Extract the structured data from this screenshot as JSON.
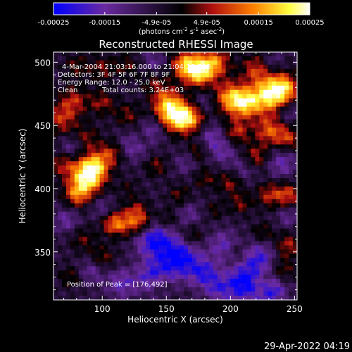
{
  "chart_data": {
    "type": "heatmap",
    "title": "Reconstructed RHESSI Image",
    "xlabel": "Heliocentric X (arcsec)",
    "ylabel": "Heliocentric Y (arcsec)",
    "xlim": [
      62,
      252
    ],
    "ylim": [
      312,
      508
    ],
    "xticks": [
      "100",
      "150",
      "200",
      "250"
    ],
    "yticks": [
      "350",
      "400",
      "450",
      "500"
    ],
    "xtick_values": [
      100,
      150,
      200,
      250
    ],
    "ytick_values": [
      350,
      400,
      450,
      500
    ],
    "colorbar": {
      "range": [
        -0.00025,
        0.00025
      ],
      "tick_values": [
        -0.00025,
        -0.00015,
        -4.9e-05,
        4.9e-05,
        0.00015,
        0.00025
      ],
      "tick_labels": [
        "-0.00025",
        "-0.00015",
        "-4.9e-05",
        "4.9e-05",
        "0.00015",
        "0.00025"
      ],
      "units": "(photons cm",
      "units_exp1": "-2",
      "units_mid": " s",
      "units_exp2": "-1",
      "units_end": " asec",
      "units_exp3": "-2",
      "units_close": ")",
      "colors": [
        "#0000ff",
        "#6a2aa0",
        "#000000",
        "#b01010",
        "#ff8000",
        "#ffff40",
        "#ffffff"
      ]
    },
    "annotations": {
      "time": "4-Mar-2004 21:03:16.000 to 21:04:16.000",
      "detectors": "Detectors: 3F 4F 5F 6F 7F 8F 9F",
      "energy": "Energy Range: 12.0 - 25.0 keV",
      "method": "Clean",
      "counts": "Total counts: 3.24E+03",
      "peak": "Position of Peak = [176,492]"
    },
    "blobs": [
      {
        "x": 88,
        "y": 408,
        "v": 1.0,
        "s": 9
      },
      {
        "x": 94,
        "y": 418,
        "v": 0.75,
        "s": 8
      },
      {
        "x": 80,
        "y": 395,
        "v": 0.6,
        "s": 7
      },
      {
        "x": 107,
        "y": 428,
        "v": 0.45,
        "s": 7
      },
      {
        "x": 120,
        "y": 373,
        "v": 0.55,
        "s": 8
      },
      {
        "x": 108,
        "y": 372,
        "v": 0.55,
        "s": 6
      },
      {
        "x": 132,
        "y": 372,
        "v": 0.4,
        "s": 6
      },
      {
        "x": 128,
        "y": 383,
        "v": 0.35,
        "s": 6
      },
      {
        "x": 70,
        "y": 420,
        "v": 0.45,
        "s": 8
      },
      {
        "x": 68,
        "y": 455,
        "v": 0.5,
        "s": 9
      },
      {
        "x": 78,
        "y": 470,
        "v": 0.45,
        "s": 8
      },
      {
        "x": 100,
        "y": 468,
        "v": 0.4,
        "s": 7
      },
      {
        "x": 88,
        "y": 440,
        "v": 0.35,
        "s": 7
      },
      {
        "x": 120,
        "y": 458,
        "v": 0.35,
        "s": 7
      },
      {
        "x": 130,
        "y": 440,
        "v": 0.3,
        "s": 6
      },
      {
        "x": 155,
        "y": 458,
        "v": 0.95,
        "s": 9
      },
      {
        "x": 168,
        "y": 455,
        "v": 0.8,
        "s": 8
      },
      {
        "x": 150,
        "y": 470,
        "v": 0.55,
        "s": 8
      },
      {
        "x": 176,
        "y": 492,
        "v": 0.9,
        "s": 8
      },
      {
        "x": 165,
        "y": 498,
        "v": 0.8,
        "s": 8
      },
      {
        "x": 188,
        "y": 500,
        "v": 0.7,
        "s": 8
      },
      {
        "x": 200,
        "y": 472,
        "v": 0.8,
        "s": 9
      },
      {
        "x": 212,
        "y": 467,
        "v": 0.75,
        "s": 8
      },
      {
        "x": 230,
        "y": 474,
        "v": 1.0,
        "s": 10
      },
      {
        "x": 242,
        "y": 480,
        "v": 0.75,
        "s": 8
      },
      {
        "x": 220,
        "y": 495,
        "v": 0.5,
        "s": 8
      },
      {
        "x": 205,
        "y": 445,
        "v": 0.5,
        "s": 7
      },
      {
        "x": 230,
        "y": 446,
        "v": 0.6,
        "s": 8
      },
      {
        "x": 245,
        "y": 440,
        "v": 0.5,
        "s": 7
      },
      {
        "x": 220,
        "y": 425,
        "v": 0.45,
        "s": 7
      },
      {
        "x": 175,
        "y": 430,
        "v": 0.35,
        "s": 6
      },
      {
        "x": 142,
        "y": 418,
        "v": 0.35,
        "s": 6
      },
      {
        "x": 200,
        "y": 405,
        "v": 0.4,
        "s": 7
      },
      {
        "x": 180,
        "y": 408,
        "v": 0.3,
        "s": 6
      },
      {
        "x": 160,
        "y": 395,
        "v": 0.3,
        "s": 6
      },
      {
        "x": 230,
        "y": 395,
        "v": 0.45,
        "s": 7
      },
      {
        "x": 245,
        "y": 395,
        "v": 0.55,
        "s": 7
      },
      {
        "x": 208,
        "y": 388,
        "v": 0.35,
        "s": 6
      },
      {
        "x": 188,
        "y": 383,
        "v": 0.25,
        "s": 5
      },
      {
        "x": 150,
        "y": 375,
        "v": 0.3,
        "s": 6
      },
      {
        "x": 170,
        "y": 362,
        "v": 0.35,
        "s": 6
      },
      {
        "x": 100,
        "y": 345,
        "v": 0.35,
        "s": 7
      },
      {
        "x": 85,
        "y": 360,
        "v": 0.3,
        "s": 7
      },
      {
        "x": 225,
        "y": 365,
        "v": 0.3,
        "s": 6
      },
      {
        "x": 245,
        "y": 355,
        "v": 0.45,
        "s": 7
      },
      {
        "x": 240,
        "y": 335,
        "v": 0.35,
        "s": 7
      },
      {
        "x": 225,
        "y": 325,
        "v": 0.3,
        "s": 6
      },
      {
        "x": 145,
        "y": 325,
        "v": 0.3,
        "s": 6
      },
      {
        "x": 75,
        "y": 330,
        "v": 0.3,
        "s": 6
      },
      {
        "x": 140,
        "y": 485,
        "v": 0.3,
        "s": 7
      },
      {
        "x": 205,
        "y": 350,
        "v": 0.25,
        "s": 6
      },
      {
        "x": 120,
        "y": 400,
        "v": 0.2,
        "s": 6
      },
      {
        "x": 120,
        "y": 497,
        "v": 0.3,
        "s": 7
      },
      {
        "x": 100,
        "y": 495,
        "v": 0.35,
        "s": 7
      },
      {
        "x": 80,
        "y": 497,
        "v": 0.3,
        "s": 7
      },
      {
        "x": 140,
        "y": 360,
        "v": -0.7,
        "s": 10
      },
      {
        "x": 160,
        "y": 345,
        "v": -0.8,
        "s": 11
      },
      {
        "x": 140,
        "y": 330,
        "v": -0.6,
        "s": 9
      },
      {
        "x": 180,
        "y": 333,
        "v": -0.55,
        "s": 8
      },
      {
        "x": 195,
        "y": 355,
        "v": -0.45,
        "s": 8
      },
      {
        "x": 222,
        "y": 345,
        "v": -0.55,
        "s": 9
      },
      {
        "x": 210,
        "y": 325,
        "v": -0.8,
        "s": 10
      },
      {
        "x": 232,
        "y": 320,
        "v": -0.65,
        "s": 8
      },
      {
        "x": 115,
        "y": 325,
        "v": -0.45,
        "s": 8
      },
      {
        "x": 190,
        "y": 320,
        "v": -0.4,
        "s": 7
      },
      {
        "x": 168,
        "y": 380,
        "v": -0.3,
        "s": 6
      },
      {
        "x": 125,
        "y": 435,
        "v": -0.45,
        "s": 8
      },
      {
        "x": 140,
        "y": 447,
        "v": -0.4,
        "s": 7
      },
      {
        "x": 185,
        "y": 440,
        "v": -0.4,
        "s": 8
      },
      {
        "x": 195,
        "y": 428,
        "v": -0.3,
        "s": 7
      },
      {
        "x": 165,
        "y": 420,
        "v": -0.25,
        "s": 6
      },
      {
        "x": 210,
        "y": 415,
        "v": -0.3,
        "s": 7
      },
      {
        "x": 240,
        "y": 420,
        "v": -0.4,
        "s": 8
      },
      {
        "x": 245,
        "y": 460,
        "v": -0.3,
        "s": 6
      },
      {
        "x": 75,
        "y": 432,
        "v": -0.35,
        "s": 7
      },
      {
        "x": 72,
        "y": 375,
        "v": -0.35,
        "s": 7
      },
      {
        "x": 92,
        "y": 335,
        "v": -0.35,
        "s": 7
      },
      {
        "x": 180,
        "y": 468,
        "v": -0.25,
        "s": 6
      },
      {
        "x": 140,
        "y": 500,
        "v": -0.3,
        "s": 7
      },
      {
        "x": 100,
        "y": 385,
        "v": -0.25,
        "s": 6
      },
      {
        "x": 232,
        "y": 500,
        "v": -0.25,
        "s": 6
      },
      {
        "x": 245,
        "y": 378,
        "v": -0.3,
        "s": 6
      }
    ]
  },
  "footer": {
    "timestamp": "29-Apr-2022 04:19"
  }
}
